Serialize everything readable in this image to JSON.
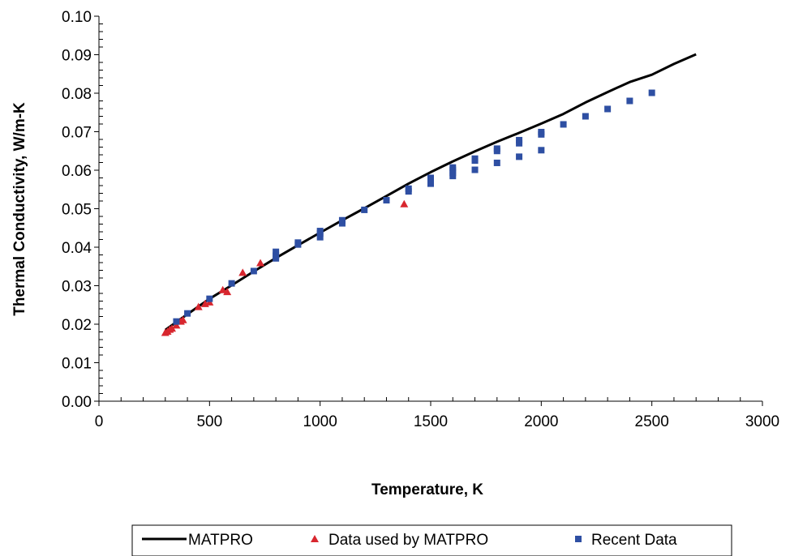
{
  "chart_data": {
    "type": "scatter",
    "title": "",
    "xlabel": "Temperature, K",
    "ylabel": "Thermal Conductivity, W/m-K",
    "xlim": [
      0,
      3000
    ],
    "ylim": [
      0.0,
      0.1
    ],
    "x_ticks": [
      "0",
      "500",
      "1000",
      "1500",
      "2000",
      "2500",
      "3000"
    ],
    "y_ticks": [
      "0.00",
      "0.01",
      "0.02",
      "0.03",
      "0.04",
      "0.05",
      "0.06",
      "0.07",
      "0.08",
      "0.09",
      "0.10"
    ],
    "grid": false,
    "legend_position": "bottom",
    "series": [
      {
        "name": "MATPRO",
        "kind": "line",
        "color": "#000000",
        "x": [
          300,
          400,
          500,
          600,
          700,
          800,
          900,
          1000,
          1100,
          1200,
          1300,
          1400,
          1500,
          1600,
          1700,
          1800,
          1900,
          2000,
          2100,
          2200,
          2300,
          2400,
          2500,
          2600,
          2700
        ],
        "y": [
          0.0185,
          0.0226,
          0.0266,
          0.0301,
          0.0337,
          0.0372,
          0.0405,
          0.0438,
          0.047,
          0.0501,
          0.0533,
          0.0565,
          0.0595,
          0.0623,
          0.0649,
          0.0674,
          0.0697,
          0.0721,
          0.0746,
          0.0776,
          0.0803,
          0.0829,
          0.0848,
          0.0876,
          0.0901
        ]
      },
      {
        "name": "Data used by MATPRO",
        "kind": "triangle",
        "color": "#d8262e",
        "x": [
          300,
          310,
          320,
          330,
          350,
          370,
          380,
          450,
          480,
          500,
          560,
          580,
          650,
          730,
          1380
        ],
        "y": [
          0.0178,
          0.0181,
          0.0186,
          0.0189,
          0.0197,
          0.0207,
          0.0211,
          0.0245,
          0.0253,
          0.0257,
          0.0289,
          0.0284,
          0.0334,
          0.0359,
          0.0512
        ]
      },
      {
        "name": "Recent Data",
        "kind": "square",
        "color": "#2e4fa3",
        "x": [
          350,
          400,
          500,
          600,
          700,
          800,
          800,
          800,
          900,
          900,
          1000,
          1000,
          1000,
          1100,
          1100,
          1200,
          1300,
          1400,
          1400,
          1500,
          1500,
          1500,
          1600,
          1600,
          1600,
          1600,
          1700,
          1700,
          1700,
          1800,
          1800,
          1800,
          1900,
          1900,
          1900,
          2000,
          2000,
          2000,
          2100,
          2200,
          2300,
          2400,
          2500
        ],
        "y": [
          0.0207,
          0.0228,
          0.0266,
          0.0306,
          0.0338,
          0.0371,
          0.0378,
          0.0388,
          0.0407,
          0.0412,
          0.0426,
          0.0436,
          0.0442,
          0.0462,
          0.047,
          0.0497,
          0.0522,
          0.0545,
          0.0552,
          0.0565,
          0.0572,
          0.058,
          0.0585,
          0.0593,
          0.0601,
          0.0607,
          0.0601,
          0.0625,
          0.063,
          0.0619,
          0.065,
          0.0656,
          0.0635,
          0.067,
          0.0678,
          0.0652,
          0.0693,
          0.0699,
          0.0719,
          0.074,
          0.0759,
          0.078,
          0.0801
        ]
      }
    ]
  }
}
